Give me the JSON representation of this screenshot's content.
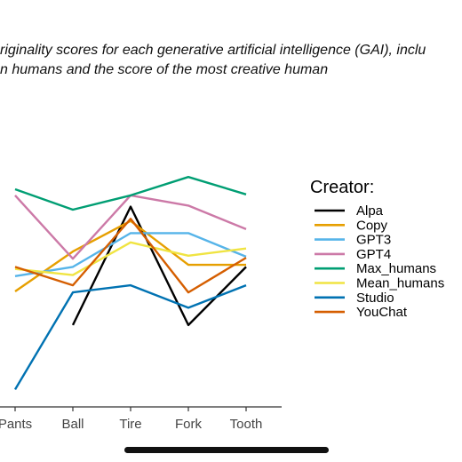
{
  "chart_data": {
    "type": "line",
    "title_lines": [
      "riginality scores for each generative artificial intelligence (GAI), inclu",
      "n humans and the score of the most creative human"
    ],
    "categories": [
      "Pants",
      "Ball",
      "Tire",
      "Fork",
      "Tooth"
    ],
    "ylim": [
      0,
      1
    ],
    "legend": {
      "title": "Creator:",
      "placement": "right"
    },
    "series": [
      {
        "name": "Alpa",
        "color": "#000000",
        "values": [
          null,
          0.235,
          0.815,
          0.235,
          0.52
        ]
      },
      {
        "name": "Copy",
        "color": "#E69F00",
        "values": [
          0.4,
          0.595,
          0.745,
          0.53,
          0.53
        ]
      },
      {
        "name": "GPT3",
        "color": "#56B4E9",
        "values": [
          0.475,
          0.52,
          0.685,
          0.685,
          0.57
        ]
      },
      {
        "name": "GPT4",
        "color": "#CC79A7",
        "values": [
          0.87,
          0.56,
          0.87,
          0.82,
          0.705
        ]
      },
      {
        "name": "Max_humans",
        "color": "#009E73",
        "values": [
          0.9,
          0.8,
          0.87,
          0.96,
          0.875
        ]
      },
      {
        "name": "Mean_humans",
        "color": "#F0E442",
        "values": [
          0.51,
          0.48,
          0.64,
          0.575,
          0.61
        ]
      },
      {
        "name": "Studio",
        "color": "#0072B2",
        "values": [
          -0.08,
          0.395,
          0.43,
          0.32,
          0.43
        ]
      },
      {
        "name": "YouChat",
        "color": "#D55E00",
        "values": [
          0.52,
          0.43,
          0.755,
          0.395,
          0.565
        ]
      }
    ]
  }
}
